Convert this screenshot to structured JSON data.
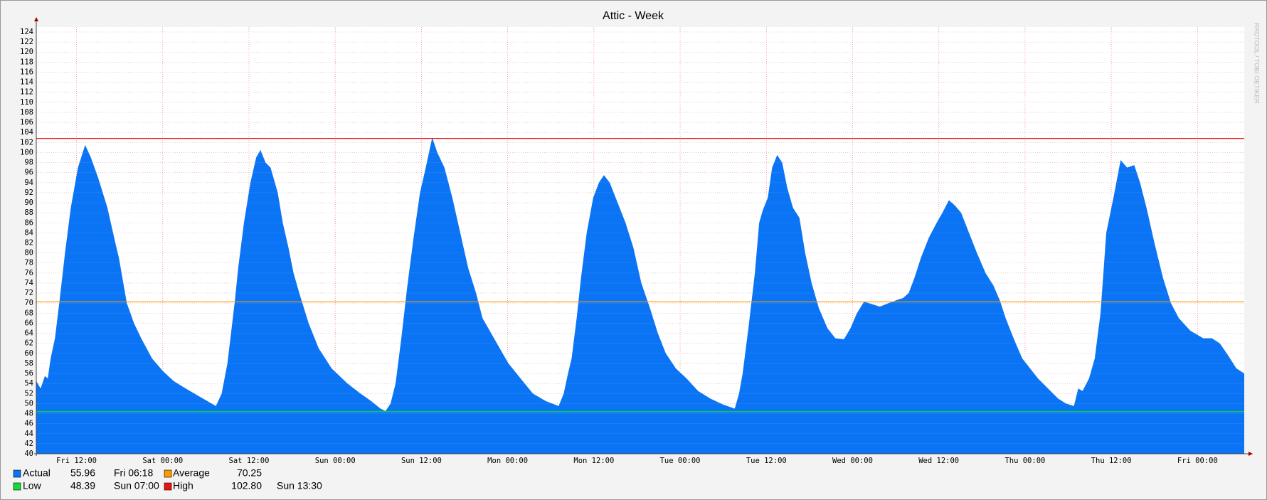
{
  "chart_data": {
    "type": "area",
    "title": "Attic - Week",
    "watermark": "RRDTOOL / TOBI OETIKER",
    "x": [
      6.4,
      7.0,
      7.6,
      8.0,
      8.4,
      9.0,
      9.6,
      10.4,
      11.2,
      12.2,
      13.2,
      14.0,
      15.0,
      16.3,
      17.4,
      17.9,
      19.0,
      20.0,
      21.0,
      22.5,
      24.0,
      25.5,
      27.2,
      29.0,
      30.8,
      31.4,
      32.2,
      33.0,
      34.0,
      34.5,
      35.3,
      36.2,
      37.0,
      37.6,
      38.3,
      39.0,
      40.0,
      40.7,
      41.5,
      42.2,
      43.0,
      44.3,
      45.7,
      47.5,
      49.7,
      51.5,
      53.0,
      54.3,
      55.0,
      55.7,
      56.4,
      57.2,
      58.0,
      58.9,
      59.8,
      60.6,
      61.5,
      62.2,
      63.2,
      64.3,
      65.4,
      66.5,
      67.6,
      68.5,
      69.3,
      70.5,
      72.1,
      73.8,
      75.5,
      77.3,
      79.1,
      79.8,
      80.4,
      80.9,
      81.6,
      82.2,
      83.0,
      83.9,
      84.7,
      85.4,
      86.2,
      87.3,
      88.4,
      89.5,
      90.6,
      91.8,
      92.9,
      94.0,
      95.4,
      96.9,
      98.5,
      100.2,
      102.0,
      103.6,
      104.2,
      104.7,
      105.5,
      106.4,
      107.0,
      107.5,
      108.2,
      108.8,
      109.5,
      110.2,
      110.9,
      111.7,
      112.6,
      113.4,
      114.3,
      115.3,
      116.5,
      117.6,
      118.8,
      119.7,
      120.6,
      121.6,
      122.7,
      123.8,
      125.0,
      126.1,
      127.0,
      127.8,
      128.6,
      129.5,
      130.6,
      131.7,
      132.5,
      133.4,
      134.2,
      135.1,
      136.2,
      137.3,
      138.5,
      139.6,
      140.5,
      141.3,
      142.4,
      143.6,
      144.7,
      145.8,
      147.2,
      148.6,
      149.7,
      150.8,
      151.4,
      152.0,
      152.9,
      153.7,
      154.5,
      155.3,
      156.3,
      157.3,
      158.2,
      159.2,
      160.0,
      160.9,
      162.0,
      163.2,
      164.3,
      165.4,
      167.0,
      168.8,
      170.0,
      171.1,
      172.3,
      173.4,
      174.5
    ],
    "series": [
      {
        "name": "Actual",
        "color": "#0a74f5",
        "values": [
          54.5,
          53,
          55.5,
          55,
          59,
          63,
          70,
          80,
          89,
          97,
          101.5,
          99,
          95,
          89,
          82,
          79,
          70,
          66,
          63,
          59,
          56.5,
          54.5,
          53,
          51.5,
          50,
          49.5,
          52,
          58,
          70,
          77,
          86,
          94,
          99,
          100.5,
          98,
          97,
          92,
          86,
          81,
          76,
          72,
          66,
          61,
          57,
          54,
          52,
          50.5,
          49,
          48.5,
          50,
          54,
          63,
          73,
          83,
          92,
          97,
          103,
          100,
          97,
          91,
          84,
          77,
          72,
          67,
          65,
          62,
          58,
          55,
          52,
          50.5,
          49.5,
          52,
          56,
          59,
          67,
          75,
          84,
          91,
          94,
          95.5,
          94,
          90,
          86,
          81,
          74,
          69,
          64,
          60,
          57,
          55,
          52.5,
          51,
          49.8,
          49,
          52,
          56,
          65,
          76,
          86,
          88.5,
          91,
          97,
          99.5,
          98,
          93,
          89,
          87,
          80,
          74,
          69,
          65,
          63,
          62.8,
          65,
          68,
          70.3,
          69.8,
          69.3,
          70,
          70.6,
          71,
          72,
          75,
          79,
          83,
          86,
          88,
          90.5,
          89.5,
          88,
          84,
          80,
          76,
          73.5,
          70.5,
          67,
          63,
          59,
          57,
          55,
          53,
          51,
          50,
          49.5,
          53,
          52.5,
          55,
          59,
          68,
          84,
          91,
          98.5,
          97,
          97.5,
          94,
          89,
          82,
          75,
          70,
          67,
          64.5,
          63,
          63,
          62,
          59.5,
          57,
          56
        ],
        "last_value": 55.96,
        "last_time": "Fri 06:18"
      }
    ],
    "reference_lines": [
      {
        "name": "Average",
        "value": 70.25,
        "color": "#ff9900"
      },
      {
        "name": "Low",
        "value": 48.39,
        "time": "Sun 07:00",
        "color": "#11dd33"
      },
      {
        "name": "High",
        "value": 102.8,
        "value_label": "102.80",
        "time": "Sun 13:30",
        "color": "#ee1111"
      }
    ],
    "xlim": [
      6.4,
      174.5
    ],
    "xticks": [
      {
        "value": 12,
        "label": "Fri 12:00"
      },
      {
        "value": 24,
        "label": "Sat 00:00"
      },
      {
        "value": 36,
        "label": "Sat 12:00"
      },
      {
        "value": 48,
        "label": "Sun 00:00"
      },
      {
        "value": 60,
        "label": "Sun 12:00"
      },
      {
        "value": 72,
        "label": "Mon 00:00"
      },
      {
        "value": 84,
        "label": "Mon 12:00"
      },
      {
        "value": 96,
        "label": "Tue 00:00"
      },
      {
        "value": 108,
        "label": "Tue 12:00"
      },
      {
        "value": 120,
        "label": "Wed 00:00"
      },
      {
        "value": 132,
        "label": "Wed 12:00"
      },
      {
        "value": 144,
        "label": "Thu 00:00"
      },
      {
        "value": 156,
        "label": "Thu 12:00"
      },
      {
        "value": 168,
        "label": "Fri 00:00"
      }
    ],
    "ylim": [
      40,
      125
    ],
    "yticks": [
      40,
      42,
      44,
      46,
      48,
      50,
      52,
      54,
      56,
      58,
      60,
      62,
      64,
      66,
      68,
      70,
      72,
      74,
      76,
      78,
      80,
      82,
      84,
      86,
      88,
      90,
      92,
      94,
      96,
      98,
      100,
      102,
      104,
      106,
      108,
      110,
      112,
      114,
      116,
      118,
      120,
      122,
      124
    ],
    "grid": true
  }
}
